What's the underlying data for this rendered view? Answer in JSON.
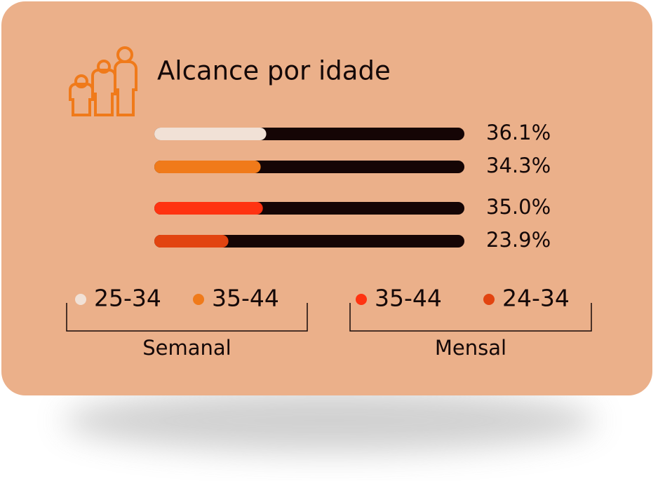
{
  "chart_data": {
    "type": "bar",
    "orientation": "horizontal",
    "title": "Alcance por idade",
    "xlim": [
      0,
      100
    ],
    "track_color": "#150505",
    "groups": [
      {
        "name": "Semanal",
        "series": [
          {
            "name": "25-34",
            "color": "#f1e1d6",
            "values": [
              36.1
            ],
            "value_labels": [
              "36.1%"
            ]
          },
          {
            "name": "35-44",
            "color": "#f07a1a",
            "values": [
              34.3
            ],
            "value_labels": [
              "34.3%"
            ]
          }
        ]
      },
      {
        "name": "Mensal",
        "series": [
          {
            "name": "35-44",
            "color": "#ff3311",
            "values": [
              35.0
            ],
            "value_labels": [
              "35.0%"
            ]
          },
          {
            "name": "24-34",
            "color": "#e24410",
            "values": [
              23.9
            ],
            "value_labels": [
              "23.9%"
            ]
          }
        ]
      }
    ]
  }
}
